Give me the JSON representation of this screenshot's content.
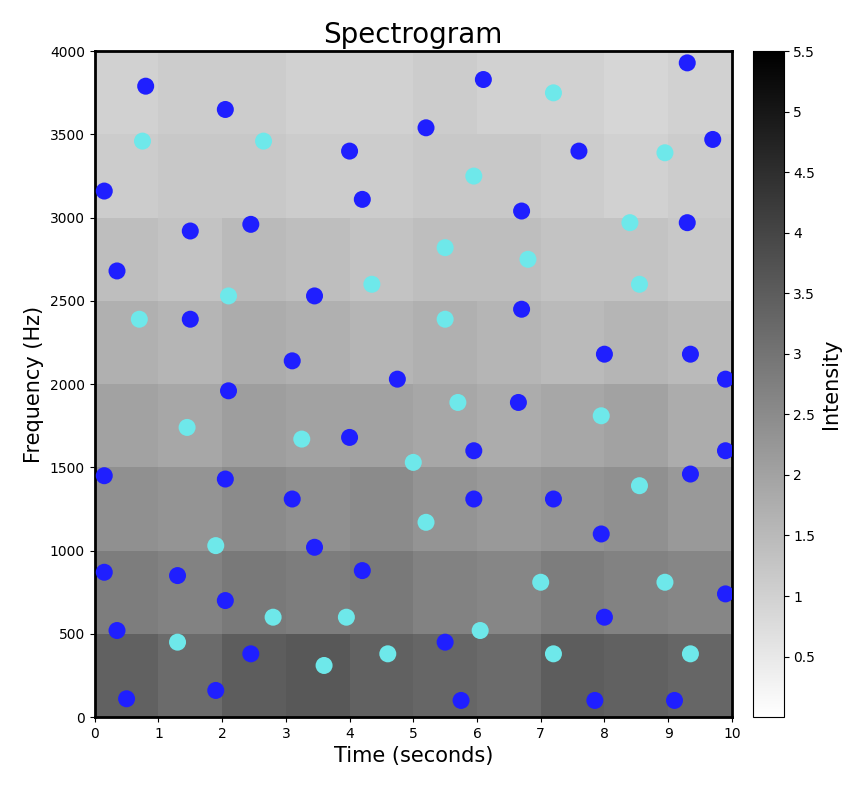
{
  "chart_data": {
    "type": "scatter",
    "title": "Spectrogram",
    "x_label": "Time (seconds)",
    "y_label": "Frequency (Hz)",
    "xlim": [
      0,
      10
    ],
    "xticks": [
      0,
      1,
      2,
      3,
      4,
      5,
      6,
      7,
      8,
      9,
      10
    ],
    "ylim": [
      0,
      4000
    ],
    "yticks": [
      0,
      500,
      1000,
      1500,
      2000,
      2500,
      3000,
      3500,
      4000
    ],
    "heatmap": {
      "x_edges": [
        0,
        1,
        2,
        3,
        4,
        5,
        6,
        7,
        8,
        9,
        10
      ],
      "y_edges": [
        0,
        500,
        1000,
        1500,
        2000,
        2500,
        3000,
        3500,
        4000
      ],
      "cells": [
        [
          3.4,
          3.2,
          3.5,
          3.6,
          3.4,
          3.3,
          3.2,
          3.5,
          3.4,
          3.3
        ],
        [
          2.8,
          2.7,
          2.9,
          2.8,
          2.9,
          2.7,
          2.6,
          2.8,
          2.7,
          2.6
        ],
        [
          2.4,
          2.3,
          2.5,
          2.4,
          2.5,
          2.3,
          2.2,
          2.3,
          2.4,
          2.2
        ],
        [
          2.0,
          1.9,
          2.1,
          2.0,
          2.0,
          1.9,
          1.8,
          1.9,
          2.0,
          1.8
        ],
        [
          1.7,
          1.6,
          1.8,
          1.7,
          1.6,
          1.7,
          1.6,
          1.5,
          1.6,
          1.5
        ],
        [
          1.4,
          1.3,
          1.5,
          1.4,
          1.3,
          1.4,
          1.4,
          1.3,
          1.3,
          1.2
        ],
        [
          1.1,
          1.2,
          1.2,
          1.1,
          1.1,
          1.2,
          1.2,
          1.1,
          1.0,
          1.1
        ],
        [
          1.0,
          1.1,
          1.1,
          1.0,
          1.0,
          1.1,
          1.0,
          1.0,
          0.9,
          1.0
        ]
      ],
      "colorbar_label": "Intensity",
      "colorbar_range": [
        0,
        5.5
      ],
      "colorbar_ticks": [
        0.5,
        1,
        1.5,
        2,
        2.5,
        3,
        3.5,
        4,
        4.5,
        5,
        5.5
      ]
    },
    "series": [
      {
        "color": "#1f1fff",
        "marker": "circle",
        "x": [
          0.15,
          0.8,
          0.35,
          0.15,
          0.15,
          0.35,
          0.5,
          1.5,
          1.5,
          1.3,
          2.05,
          2.45,
          2.1,
          2.05,
          2.05,
          1.9,
          2.45,
          3.1,
          3.1,
          3.45,
          3.45,
          4.0,
          4.2,
          4.0,
          4.2,
          4.75,
          5.2,
          5.5,
          5.75,
          5.95,
          5.95,
          6.1,
          6.7,
          6.7,
          6.65,
          7.2,
          7.6,
          7.85,
          8.0,
          8.0,
          7.95,
          9.3,
          9.3,
          9.35,
          9.35,
          9.1,
          9.7,
          9.9,
          9.9,
          9.9
        ],
        "y": [
          3160,
          3790,
          2680,
          1450,
          870,
          520,
          110,
          2920,
          2390,
          850,
          3650,
          2960,
          1960,
          1430,
          700,
          160,
          380,
          2140,
          1310,
          2530,
          1020,
          3400,
          3110,
          1680,
          880,
          2030,
          3540,
          450,
          100,
          1600,
          1310,
          3830,
          3040,
          2450,
          1890,
          1310,
          3400,
          100,
          2180,
          600,
          1100,
          3930,
          2970,
          2180,
          1460,
          100,
          3470,
          2030,
          1600,
          740
        ]
      },
      {
        "color": "#6ee8ea",
        "marker": "circle",
        "x": [
          0.75,
          0.7,
          1.45,
          1.3,
          1.9,
          2.1,
          2.65,
          2.8,
          3.25,
          3.6,
          3.95,
          4.35,
          4.6,
          5.0,
          5.2,
          5.5,
          5.5,
          5.7,
          5.95,
          6.05,
          6.8,
          7.0,
          7.2,
          7.2,
          7.95,
          8.4,
          8.55,
          8.55,
          8.95,
          8.95,
          9.35
        ],
        "y": [
          3460,
          2390,
          1740,
          450,
          1030,
          2530,
          3460,
          600,
          1670,
          310,
          600,
          2600,
          380,
          1530,
          1170,
          2820,
          2390,
          1890,
          3250,
          520,
          2750,
          810,
          3750,
          380,
          1810,
          2970,
          2600,
          1390,
          3390,
          810,
          380
        ]
      }
    ]
  }
}
